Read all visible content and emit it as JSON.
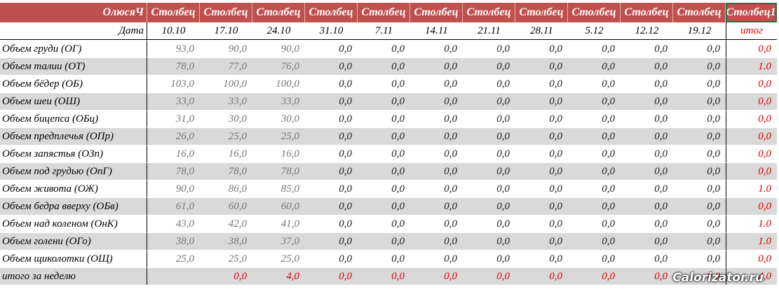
{
  "header": {
    "owner": "ОлюсяЧ",
    "columns": [
      "Столбец",
      "Столбец",
      "Столбец",
      "Столбец",
      "Столбец",
      "Столбец",
      "Столбец",
      "Столбец",
      "Столбец",
      "Столбец",
      "Столбец",
      "Столбец1"
    ]
  },
  "dates": {
    "label": "Дата",
    "values": [
      "10.10",
      "17.10",
      "24.10",
      "31.10",
      "7.11",
      "14.11",
      "21.11",
      "28.11",
      "5.12",
      "12.12",
      "19.12"
    ],
    "total": "итог"
  },
  "rows": [
    {
      "label": "Объем груди (ОГ)",
      "values": [
        "93,0",
        "90,0",
        "90,0",
        "0,0",
        "0,0",
        "0,0",
        "0,0",
        "0,0",
        "0,0",
        "0,0",
        "0,0"
      ],
      "total": "0,0"
    },
    {
      "label": "Объем талии (ОТ)",
      "values": [
        "78,0",
        "77,0",
        "76,0",
        "0,0",
        "0,0",
        "0,0",
        "0,0",
        "0,0",
        "0,0",
        "0,0",
        "0,0"
      ],
      "total": "1.0"
    },
    {
      "label": "Объем бёдер (ОБ)",
      "values": [
        "103,0",
        "100,0",
        "100,0",
        "0,0",
        "0,0",
        "0,0",
        "0,0",
        "0,0",
        "0,0",
        "0,0",
        "0,0"
      ],
      "total": "0,0"
    },
    {
      "label": "Объем шеи (ОШ)",
      "values": [
        "33,0",
        "33,0",
        "33,0",
        "0,0",
        "0,0",
        "0,0",
        "0,0",
        "0,0",
        "0,0",
        "0,0",
        "0,0"
      ],
      "total": "0,0"
    },
    {
      "label": "Объем бицепса (ОБц)",
      "values": [
        "31,0",
        "30,0",
        "30,0",
        "0,0",
        "0,0",
        "0,0",
        "0,0",
        "0,0",
        "0,0",
        "0,0",
        "0,0"
      ],
      "total": "0,0"
    },
    {
      "label": "Объем предплечья (ОПр)",
      "values": [
        "26,0",
        "25,0",
        "25,0",
        "0,0",
        "0,0",
        "0,0",
        "0,0",
        "0,0",
        "0,0",
        "0,0",
        "0,0"
      ],
      "total": "0,0"
    },
    {
      "label": "Объем запястья (ОЗп)",
      "values": [
        "16,0",
        "16,0",
        "16,0",
        "0,0",
        "0,0",
        "0,0",
        "0,0",
        "0,0",
        "0,0",
        "0,0",
        "0,0"
      ],
      "total": "0,0"
    },
    {
      "label": "Объем под грудью (ОпГ)",
      "values": [
        "78,0",
        "78,0",
        "78,0",
        "0,0",
        "0,0",
        "0,0",
        "0,0",
        "0,0",
        "0,0",
        "0,0",
        "0,0"
      ],
      "total": "0,0"
    },
    {
      "label": "Объем живота (ОЖ)",
      "values": [
        "90,0",
        "86,0",
        "85,0",
        "0,0",
        "0,0",
        "0,0",
        "0,0",
        "0,0",
        "0,0",
        "0,0",
        "0,0"
      ],
      "total": "1.0"
    },
    {
      "label": "Объем бедра вверху (ОБв)",
      "values": [
        "61,0",
        "60,0",
        "60,0",
        "0,0",
        "0,0",
        "0,0",
        "0,0",
        "0,0",
        "0,0",
        "0,0",
        "0,0"
      ],
      "total": "0,0"
    },
    {
      "label": "Объем над коленом (ОнК)",
      "values": [
        "43,0",
        "42,0",
        "41,0",
        "0,0",
        "0,0",
        "0,0",
        "0,0",
        "0,0",
        "0,0",
        "0,0",
        "0,0"
      ],
      "total": "1.0"
    },
    {
      "label": "Объем голени (ОГо)",
      "values": [
        "38,0",
        "38,0",
        "37,0",
        "0,0",
        "0,0",
        "0,0",
        "0,0",
        "0,0",
        "0,0",
        "0,0",
        "0,0"
      ],
      "total": "1.0"
    },
    {
      "label": "Объем щиколотки (ОЩ)",
      "values": [
        "25,0",
        "25,0",
        "25,0",
        "0,0",
        "0,0",
        "0,0",
        "0,0",
        "0,0",
        "0,0",
        "0,0",
        "0,0"
      ],
      "total": "0,0"
    }
  ],
  "weekly": {
    "label": "итого за неделю",
    "values": [
      null,
      "0,0",
      "4,0",
      "0,0",
      "0,0",
      "0,0",
      "0,0",
      "0,0",
      "0,0",
      "0,0",
      "0,0"
    ],
    "total": "4,0"
  },
  "watermark": "Calorizator.ru"
}
